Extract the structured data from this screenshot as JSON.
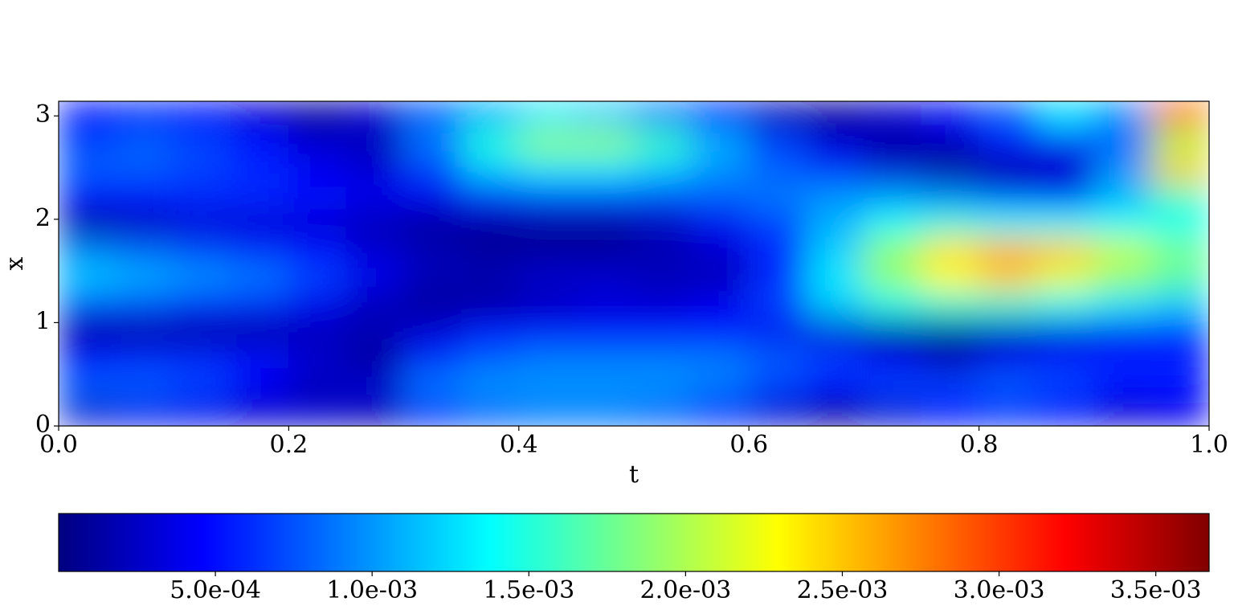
{
  "chart_data": {
    "type": "heatmap",
    "colormap": "jet",
    "xlabel": "t",
    "ylabel": "x",
    "x": [
      0.025,
      0.075,
      0.125,
      0.175,
      0.225,
      0.275,
      0.325,
      0.375,
      0.425,
      0.475,
      0.525,
      0.575,
      0.625,
      0.675,
      0.725,
      0.775,
      0.825,
      0.875,
      0.925,
      0.975
    ],
    "y": [
      0.131,
      0.393,
      0.654,
      0.916,
      1.178,
      1.44,
      1.702,
      1.963,
      2.225,
      2.487,
      2.749,
      3.011
    ],
    "values": [
      [
        0.0003,
        0.0004,
        0.0004,
        0.0003,
        0.0003,
        0.0002,
        0.0006,
        0.0008,
        0.0009,
        0.0009,
        0.0008,
        0.0006,
        0.0003,
        0.0001,
        0.0003,
        0.0005,
        0.0006,
        0.0005,
        0.0003,
        0.0004
      ],
      [
        0.0008,
        0.0008,
        0.0007,
        0.0004,
        0.0002,
        0.0003,
        0.0009,
        0.001,
        0.001,
        0.001,
        0.001,
        0.0009,
        0.0007,
        0.0005,
        0.0007,
        0.0007,
        0.0008,
        0.0007,
        0.0005,
        0.0005
      ],
      [
        0.0005,
        0.0006,
        0.0006,
        0.0005,
        0.0003,
        0.0001,
        0.0006,
        0.0008,
        0.0009,
        0.0009,
        0.0009,
        0.0009,
        0.0008,
        0.0007,
        0.0004,
        0.0002,
        0.0004,
        0.0006,
        0.0006,
        0.0006
      ],
      [
        0.0001,
        0.0001,
        0.0001,
        0.0001,
        0.0002,
        0.0002,
        0.0003,
        0.0005,
        0.0005,
        0.0005,
        0.0005,
        0.0005,
        0.0004,
        0.0003,
        0.0001,
        0.0001,
        0.0002,
        0.0003,
        0.0004,
        0.0005
      ],
      [
        0.0007,
        0.0007,
        0.0006,
        0.0006,
        0.0004,
        0.0002,
        0.0001,
        0.0001,
        0.0002,
        0.0003,
        0.0003,
        0.0004,
        0.0007,
        0.0012,
        0.0014,
        0.0015,
        0.0015,
        0.0014,
        0.0013,
        0.0012
      ],
      [
        0.0012,
        0.0011,
        0.001,
        0.0009,
        0.0007,
        0.0004,
        0.0002,
        0.0002,
        0.0003,
        0.0003,
        0.0002,
        0.0002,
        0.0006,
        0.0013,
        0.0019,
        0.0023,
        0.0025,
        0.0022,
        0.0019,
        0.0017
      ],
      [
        0.0009,
        0.0008,
        0.0007,
        0.0006,
        0.0005,
        0.0003,
        0.0002,
        0.0001,
        0.0001,
        0.0001,
        0.0002,
        0.0003,
        0.0006,
        0.0012,
        0.0019,
        0.0024,
        0.0026,
        0.0025,
        0.0021,
        0.0018
      ],
      [
        0.0001,
        0.0002,
        0.0003,
        0.0003,
        0.0003,
        0.0002,
        0.0001,
        0.0001,
        0.0001,
        0.0001,
        0.0002,
        0.0004,
        0.0007,
        0.0011,
        0.0014,
        0.0015,
        0.0014,
        0.0014,
        0.0014,
        0.0014
      ],
      [
        0.0005,
        0.0005,
        0.0006,
        0.0006,
        0.0005,
        0.0004,
        0.0004,
        0.0006,
        0.0007,
        0.0007,
        0.0007,
        0.0008,
        0.0009,
        0.001,
        0.001,
        0.0009,
        0.0007,
        0.0006,
        0.0011,
        0.0016
      ],
      [
        0.0008,
        0.0008,
        0.0007,
        0.0006,
        0.0004,
        0.0003,
        0.0007,
        0.0012,
        0.0013,
        0.0013,
        0.0012,
        0.001,
        0.0008,
        0.0006,
        0.0003,
        0.0001,
        0.0001,
        0.0002,
        0.001,
        0.0025
      ],
      [
        0.0007,
        0.0008,
        0.0007,
        0.0005,
        0.0003,
        0.0002,
        0.0009,
        0.0015,
        0.0019,
        0.0019,
        0.0016,
        0.0011,
        0.0007,
        0.0003,
        0.0001,
        0.0002,
        0.0005,
        0.0005,
        0.0008,
        0.002
      ],
      [
        0.0005,
        0.0006,
        0.0005,
        0.0003,
        0.0001,
        0.0003,
        0.0008,
        0.0011,
        0.0013,
        0.0012,
        0.0009,
        0.0005,
        0.0002,
        0.0001,
        0.0003,
        0.0005,
        0.0008,
        0.0013,
        0.001,
        0.0028
      ]
    ],
    "xlim": [
      0,
      1
    ],
    "ylim": [
      0,
      3.14159
    ],
    "xticks": [
      {
        "value": 0,
        "label": "0.0"
      },
      {
        "value": 0.2,
        "label": "0.2"
      },
      {
        "value": 0.4,
        "label": "0.4"
      },
      {
        "value": 0.6,
        "label": "0.6"
      },
      {
        "value": 0.8,
        "label": "0.8"
      },
      {
        "value": 1,
        "label": "1.0"
      }
    ],
    "yticks": [
      0,
      1,
      2,
      3
    ],
    "colorbar": {
      "lim": [
        0,
        0.00367
      ],
      "ticks": [
        {
          "value": 0.0005,
          "label": "5.0e-04"
        },
        {
          "value": 0.001,
          "label": "1.0e-03"
        },
        {
          "value": 0.0015,
          "label": "1.5e-03"
        },
        {
          "value": 0.002,
          "label": "2.0e-03"
        },
        {
          "value": 0.0025,
          "label": "2.5e-03"
        },
        {
          "value": 0.003,
          "label": "3.0e-03"
        },
        {
          "value": 0.0035,
          "label": "3.5e-03"
        }
      ]
    }
  }
}
